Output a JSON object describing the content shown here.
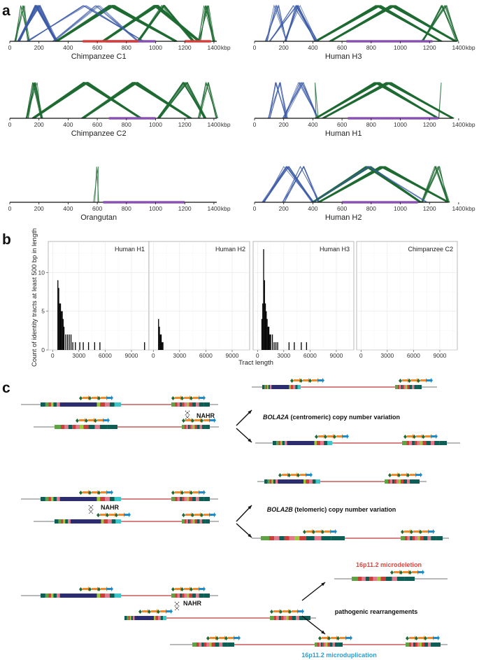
{
  "figure": {
    "panel_a": {
      "letter": "a",
      "x_ticks": [
        "0",
        "200",
        "400",
        "600",
        "800",
        "1000",
        "1200",
        "1400"
      ],
      "unit": "kbp",
      "plots": [
        {
          "title": "Chimpanzee C1",
          "length_kbp": 1420
        },
        {
          "title": "Human H3",
          "length_kbp": 1390
        },
        {
          "title": "Chimpanzee C2",
          "length_kbp": 1420
        },
        {
          "title": "Human H1",
          "length_kbp": 1360
        },
        {
          "title": "Orangutan",
          "length_kbp": 1420
        },
        {
          "title": "Human H2",
          "length_kbp": 1330
        }
      ],
      "colors": {
        "inverted": "#3c5ba7",
        "direct": "#1e6b32",
        "purple": "#8a4fb3",
        "red": "#d93b3b"
      }
    },
    "panel_b": {
      "letter": "b",
      "ylabel": "Count of identity tracts at least 500 bp in length",
      "xlabel": "Tract length",
      "facets": [
        "Human H1",
        "Human H2",
        "Human H3",
        "Chimpanzee C2"
      ],
      "y_ticks": [
        "0",
        "5",
        "10"
      ],
      "x_ticks_first": [
        "0",
        "3000",
        "6000",
        "9000"
      ],
      "x_ticks_other": [
        "0",
        "3000",
        "6000",
        "9000"
      ],
      "ylim": [
        0,
        14
      ],
      "xlim": [
        -500,
        11000
      ]
    },
    "panel_c": {
      "letter": "c",
      "nahr": "NAHR",
      "row1_label_italic": "BOLA2A",
      "row1_label_rest": " (centromeric) copy number variation",
      "row2_label_italic": "BOLA2B",
      "row2_label_rest": " (telomeric) copy number variation",
      "row3_top": "16p11.2 microdeletion",
      "row3_mid": "pathogenic rearrangements",
      "row3_bottom": "16p11.2 microduplication",
      "colors": {
        "deletion": "#e0453c",
        "duplication": "#2b9ed6"
      }
    }
  },
  "chart_data": [
    {
      "type": "bar",
      "title": "Human H1",
      "xlabel": "Tract length",
      "ylabel": "Count of identity tracts at least 500 bp in length",
      "x": [
        600,
        700,
        800,
        900,
        1000,
        1100,
        1200,
        1300,
        1500,
        1700,
        1900,
        2100,
        2300,
        2600,
        3100,
        3500,
        4100,
        4800,
        5400,
        10500
      ],
      "values": [
        9,
        8,
        6,
        6,
        5,
        5,
        4,
        3,
        2,
        2,
        2,
        2,
        1,
        1,
        1,
        1,
        1,
        1,
        1,
        1
      ],
      "ylim": [
        0,
        14
      ],
      "xlim": [
        -500,
        11000
      ]
    },
    {
      "type": "bar",
      "title": "Human H2",
      "xlabel": "Tract length",
      "ylabel": "Count of identity tracts at least 500 bp in length",
      "x": [
        600,
        700,
        800,
        900,
        1000,
        1100
      ],
      "values": [
        4,
        3,
        2,
        2,
        1,
        1
      ],
      "ylim": [
        0,
        14
      ],
      "xlim": [
        -500,
        11000
      ]
    },
    {
      "type": "bar",
      "title": "Human H3",
      "xlabel": "Tract length",
      "ylabel": "Count of identity tracts at least 500 bp in length",
      "x": [
        500,
        600,
        700,
        800,
        900,
        1000,
        1100,
        1200,
        1300,
        1400,
        1500,
        1700,
        1900,
        2100,
        2300,
        3600,
        4200,
        5000,
        5600
      ],
      "values": [
        4,
        6,
        13,
        9,
        6,
        5,
        4,
        3,
        3,
        2,
        2,
        2,
        1,
        1,
        1,
        1,
        1,
        1,
        1
      ],
      "ylim": [
        0,
        14
      ],
      "xlim": [
        -500,
        11000
      ]
    },
    {
      "type": "bar",
      "title": "Chimpanzee C2",
      "xlabel": "Tract length",
      "ylabel": "Count of identity tracts at least 500 bp in length",
      "x": [],
      "values": [],
      "ylim": [
        0,
        14
      ],
      "xlim": [
        -500,
        11000
      ]
    }
  ]
}
